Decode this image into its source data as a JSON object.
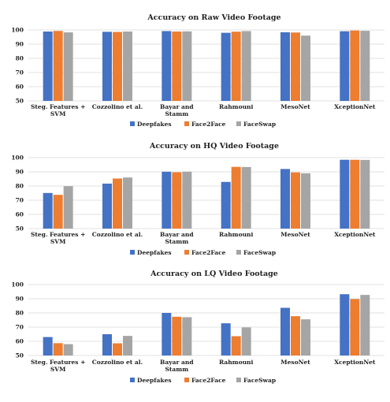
{
  "chart_data": [
    {
      "type": "bar",
      "title": "Accuracy on Raw Video Footage",
      "xlabel": "",
      "ylabel": "",
      "ylim": [
        50,
        100
      ],
      "yticks": [
        50,
        60,
        70,
        80,
        90,
        100
      ],
      "grid": true,
      "legend": "bottom",
      "categories": [
        [
          "Steg. Features +",
          "SVM"
        ],
        [
          "Cozzolino et al."
        ],
        [
          "Bayar and",
          "Stamm"
        ],
        [
          "Rahmouni"
        ],
        [
          "MesoNet"
        ],
        [
          "XceptionNet"
        ]
      ],
      "series": [
        {
          "name": "Deepfakes",
          "color": "#4472C4",
          "values": [
            98.9,
            98.7,
            99.2,
            98.0,
            98.4,
            99.1
          ]
        },
        {
          "name": "Face2Face",
          "color": "#ED7D31",
          "values": [
            99.3,
            98.6,
            98.9,
            98.8,
            98.2,
            99.6
          ]
        },
        {
          "name": "FaceSwap",
          "color": "#A5A5A5",
          "values": [
            98.3,
            98.9,
            99.0,
            99.2,
            96.0,
            99.4
          ]
        }
      ]
    },
    {
      "type": "bar",
      "title": "Accuracy on HQ Video Footage",
      "xlabel": "",
      "ylabel": "",
      "ylim": [
        50,
        100
      ],
      "yticks": [
        50,
        60,
        70,
        80,
        90,
        100
      ],
      "grid": true,
      "legend": "bottom",
      "categories": [
        [
          "Steg. Features +",
          "SVM"
        ],
        [
          "Cozzolino et al."
        ],
        [
          "Bayar and",
          "Stamm"
        ],
        [
          "Rahmouni"
        ],
        [
          "MesoNet"
        ],
        [
          "XceptionNet"
        ]
      ],
      "series": [
        {
          "name": "Deepfakes",
          "color": "#4472C4",
          "values": [
            75.1,
            81.7,
            90.1,
            82.9,
            92.0,
            98.5
          ]
        },
        {
          "name": "Face2Face",
          "color": "#ED7D31",
          "values": [
            73.8,
            85.3,
            89.7,
            93.5,
            89.6,
            98.5
          ]
        },
        {
          "name": "FaceSwap",
          "color": "#A5A5A5",
          "values": [
            79.9,
            86.0,
            90.1,
            93.4,
            89.0,
            98.4
          ]
        }
      ]
    },
    {
      "type": "bar",
      "title": "Accuracy on LQ Video Footage",
      "xlabel": "",
      "ylabel": "",
      "ylim": [
        50,
        100
      ],
      "yticks": [
        50,
        60,
        70,
        80,
        90,
        100
      ],
      "grid": true,
      "legend": "bottom",
      "categories": [
        [
          "Steg. Features +",
          "SVM"
        ],
        [
          "Cozzolino et al."
        ],
        [
          "Bayar and",
          "Stamm"
        ],
        [
          "Rahmouni"
        ],
        [
          "MesoNet"
        ],
        [
          "XceptionNet"
        ]
      ],
      "series": [
        {
          "name": "Deepfakes",
          "color": "#4472C4",
          "values": [
            63.0,
            65.0,
            80.0,
            72.7,
            83.6,
            93.2
          ]
        },
        {
          "name": "Face2Face",
          "color": "#ED7D31",
          "values": [
            58.7,
            58.6,
            77.3,
            63.6,
            77.7,
            89.8
          ]
        },
        {
          "name": "FaceSwap",
          "color": "#A5A5A5",
          "values": [
            58.0,
            63.8,
            77.0,
            69.8,
            75.5,
            92.7
          ]
        }
      ]
    }
  ]
}
